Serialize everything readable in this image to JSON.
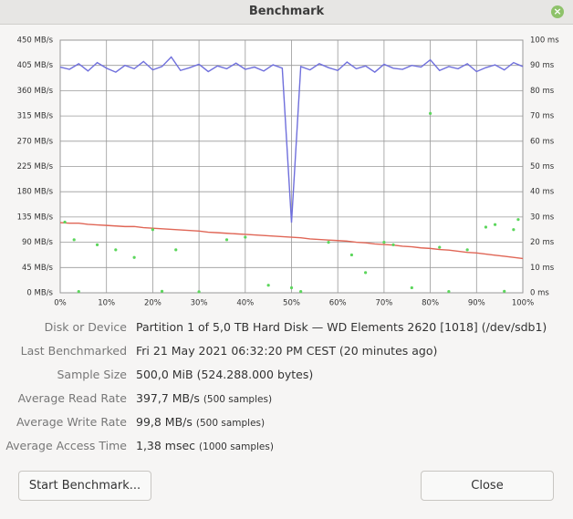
{
  "window": {
    "title": "Benchmark"
  },
  "chart_data": {
    "type": "line",
    "grid": true,
    "xlim": [
      0,
      100
    ],
    "xticks": [
      {
        "value": 0,
        "label": "0%"
      },
      {
        "value": 10,
        "label": "10%"
      },
      {
        "value": 20,
        "label": "20%"
      },
      {
        "value": 30,
        "label": "30%"
      },
      {
        "value": 40,
        "label": "40%"
      },
      {
        "value": 50,
        "label": "50%"
      },
      {
        "value": 60,
        "label": "60%"
      },
      {
        "value": 70,
        "label": "70%"
      },
      {
        "value": 80,
        "label": "80%"
      },
      {
        "value": 90,
        "label": "90%"
      },
      {
        "value": 100,
        "label": "100%"
      }
    ],
    "ylim": [
      0,
      450
    ],
    "yticks": [
      {
        "value": 0,
        "label": "0 MB/s"
      },
      {
        "value": 45,
        "label": "45 MB/s"
      },
      {
        "value": 90,
        "label": "90 MB/s"
      },
      {
        "value": 135,
        "label": "135 MB/s"
      },
      {
        "value": 180,
        "label": "180 MB/s"
      },
      {
        "value": 225,
        "label": "225 MB/s"
      },
      {
        "value": 270,
        "label": "270 MB/s"
      },
      {
        "value": 315,
        "label": "315 MB/s"
      },
      {
        "value": 360,
        "label": "360 MB/s"
      },
      {
        "value": 405,
        "label": "405 MB/s"
      },
      {
        "value": 450,
        "label": "450 MB/s"
      }
    ],
    "y2lim": [
      0,
      100
    ],
    "y2ticks": [
      {
        "value": 0,
        "label": "0 ms"
      },
      {
        "value": 10,
        "label": "10 ms"
      },
      {
        "value": 20,
        "label": "20 ms"
      },
      {
        "value": 30,
        "label": "30 ms"
      },
      {
        "value": 40,
        "label": "40 ms"
      },
      {
        "value": 50,
        "label": "50 ms"
      },
      {
        "value": 60,
        "label": "60 ms"
      },
      {
        "value": 70,
        "label": "70 ms"
      },
      {
        "value": 80,
        "label": "80 ms"
      },
      {
        "value": 90,
        "label": "90 ms"
      },
      {
        "value": 100,
        "label": "100 ms"
      }
    ],
    "x": [
      0,
      2,
      4,
      6,
      8,
      10,
      12,
      14,
      16,
      18,
      20,
      22,
      24,
      26,
      28,
      30,
      32,
      34,
      36,
      38,
      40,
      42,
      44,
      46,
      48,
      50,
      52,
      54,
      56,
      58,
      60,
      62,
      64,
      66,
      68,
      70,
      72,
      74,
      76,
      78,
      80,
      82,
      84,
      86,
      88,
      90,
      92,
      94,
      96,
      98,
      100
    ],
    "series": [
      {
        "color": "#6f6fdc",
        "values": [
          402,
          398,
          408,
          395,
          410,
          400,
          393,
          405,
          399,
          412,
          397,
          403,
          420,
          396,
          401,
          407,
          394,
          404,
          399,
          409,
          398,
          402,
          395,
          406,
          400,
          125,
          403,
          397,
          408,
          401,
          396,
          411,
          399,
          404,
          393,
          407,
          400,
          398,
          405,
          402,
          415,
          396,
          403,
          399,
          408,
          394,
          401,
          406,
          397,
          410,
          403
        ]
      },
      {
        "color": "#e06656",
        "values": [
          125,
          124,
          124,
          122,
          121,
          120,
          119,
          118,
          118,
          116,
          115,
          114,
          113,
          112,
          111,
          110,
          108,
          107,
          106,
          105,
          104,
          103,
          102,
          101,
          100,
          99,
          98,
          96,
          95,
          94,
          93,
          92,
          90,
          89,
          87,
          86,
          85,
          83,
          82,
          80,
          79,
          77,
          76,
          74,
          72,
          71,
          69,
          67,
          65,
          63,
          61
        ]
      },
      {
        "type": "scatter",
        "axis": "y2",
        "color": "#5cd65c",
        "x": [
          1,
          3,
          4,
          8,
          12,
          16,
          20,
          22,
          25,
          30,
          36,
          40,
          45,
          50,
          52,
          58,
          63,
          66,
          70,
          72,
          76,
          80,
          82,
          84,
          88,
          92,
          94,
          96,
          98,
          99
        ],
        "values": [
          28,
          21,
          0.5,
          19,
          17,
          14,
          25,
          0.6,
          17,
          0.4,
          21,
          22,
          3,
          2,
          0.5,
          20,
          15,
          8,
          20,
          19,
          2,
          71,
          18,
          0.5,
          17,
          26,
          27,
          0.6,
          25,
          29
        ]
      }
    ]
  },
  "details": [
    {
      "label": "Disk or Device",
      "value": "Partition 1 of 5,0 TB Hard Disk — WD Elements 2620 [1018] (/dev/sdb1)"
    },
    {
      "label": "Last Benchmarked",
      "value": "Fri 21 May 2021 06:32:20 PM CEST (20 minutes ago)"
    },
    {
      "label": "Sample Size",
      "value": "500,0 MiB (524.288.000 bytes)"
    },
    {
      "label": "Average Read Rate",
      "value": "397,7 MB/s",
      "note": "(500 samples)"
    },
    {
      "label": "Average Write Rate",
      "value": "99,8 MB/s",
      "note": "(500 samples)"
    },
    {
      "label": "Average Access Time",
      "value": "1,38 msec",
      "note": "(1000 samples)"
    }
  ],
  "buttons": [
    "Start Benchmark...",
    "Close"
  ]
}
